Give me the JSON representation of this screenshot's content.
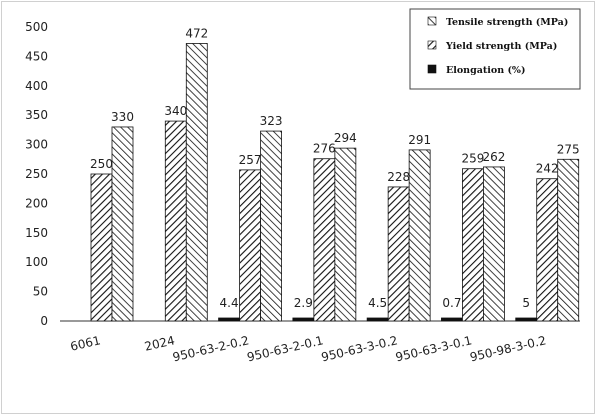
{
  "chart_data": {
    "type": "bar",
    "categories": [
      "6061",
      "2024",
      "950-63-2-0.2",
      "950-63-2-0.1",
      "950-63-3-0.2",
      "950-63-3-0.1",
      "950-98-3-0.2"
    ],
    "series": [
      {
        "name": "Elongation  (%)",
        "values": [
          null,
          null,
          4.4,
          2.9,
          4.5,
          0.7,
          5
        ],
        "labels": [
          "",
          "",
          "4.4",
          "2.9",
          "4.5",
          "0.7",
          "5"
        ],
        "pattern": "solid"
      },
      {
        "name": "Yield strength (MPa)",
        "values": [
          250,
          340,
          257,
          276,
          228,
          259,
          242
        ],
        "labels": [
          "250",
          "340",
          "257",
          "276",
          "228",
          "259",
          "242"
        ],
        "pattern": "hatch-forward"
      },
      {
        "name": "Tensile strength (MPa)",
        "values": [
          330,
          472,
          323,
          294,
          291,
          262,
          275
        ],
        "labels": [
          "330",
          "472",
          "323",
          "294",
          "291",
          "262",
          "275"
        ],
        "pattern": "hatch-back"
      }
    ],
    "legend_order": [
      2,
      1,
      0
    ],
    "yticks": [
      "0",
      "50",
      "100",
      "150",
      "200",
      "250",
      "300",
      "350",
      "400",
      "450",
      "500"
    ],
    "ylim": [
      0,
      500
    ],
    "legend_position": "top-right",
    "grid": false
  }
}
